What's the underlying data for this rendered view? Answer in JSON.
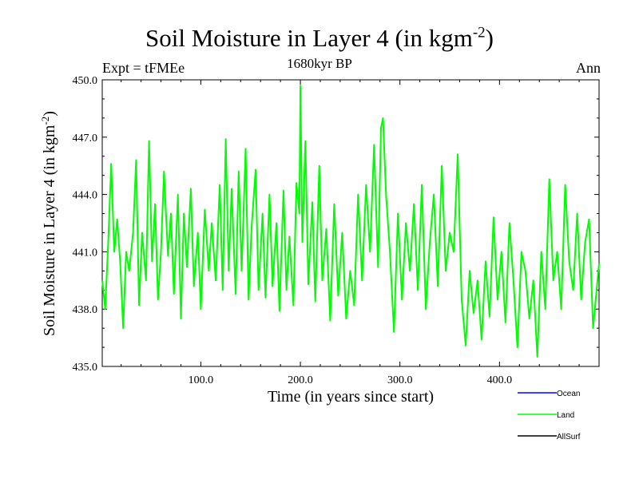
{
  "header": {
    "title_main": "Soil Moisture in Layer 4 (in kgm",
    "title_exp": "-2",
    "title_close": ")",
    "expt_label": "Expt = tFMEe",
    "subtitle": "1680kyr BP",
    "season": "Ann"
  },
  "colors": {
    "ocean": "#0000ff",
    "land": "#00ff00",
    "allsurf": "#000000"
  },
  "chart_data": {
    "type": "line",
    "title": "Soil Moisture in Layer 4 (in kgm-2)",
    "xlabel": "Time (in years since start)",
    "ylabel_main": "Soil Moisture in Layer 4 (in kgm",
    "ylabel_exp": "-2",
    "ylabel_close": ")",
    "xlim": [
      1,
      500
    ],
    "ylim": [
      435.0,
      450.0
    ],
    "xticks": [
      100,
      200,
      300,
      400
    ],
    "xtick_labels": [
      "100.0",
      "200.0",
      "300.0",
      "400.0"
    ],
    "yticks": [
      435,
      438,
      441,
      444,
      447,
      450
    ],
    "ytick_labels": [
      "435.0",
      "438.0",
      "441.0",
      "444.0",
      "447.0",
      "450.0"
    ],
    "legend": [
      {
        "name": "Ocean",
        "color": "#0000ff"
      },
      {
        "name": "Land",
        "color": "#00ff00"
      },
      {
        "name": "AllSurf",
        "color": "#000000"
      }
    ],
    "series": [
      {
        "name": "Land",
        "color": "#00ff00",
        "x": [
          1,
          4,
          7,
          10,
          13,
          16,
          19,
          22,
          25,
          28,
          32,
          35,
          38,
          41,
          45,
          48,
          51,
          54,
          57,
          60,
          63,
          67,
          70,
          73,
          77,
          80,
          83,
          86,
          90,
          93,
          97,
          100,
          104,
          108,
          111,
          115,
          119,
          122,
          125,
          128,
          131,
          135,
          138,
          141,
          145,
          148,
          151,
          155,
          158,
          162,
          165,
          169,
          172,
          176,
          179,
          183,
          186,
          189,
          193,
          196,
          199,
          200,
          202,
          205,
          208,
          212,
          215,
          219,
          222,
          226,
          230,
          234,
          238,
          242,
          246,
          250,
          254,
          258,
          262,
          266,
          270,
          274,
          278,
          281,
          283,
          286,
          290,
          294,
          298,
          302,
          306,
          310,
          314,
          318,
          322,
          326,
          330,
          334,
          338,
          342,
          346,
          350,
          354,
          358,
          362,
          366,
          370,
          374,
          378,
          382,
          386,
          390,
          394,
          398,
          402,
          406,
          410,
          414,
          418,
          422,
          426,
          430,
          434,
          438,
          442,
          446,
          450,
          454,
          458,
          462,
          466,
          470,
          474,
          478,
          482,
          486,
          490,
          494,
          500
        ],
        "values": [
          439.5,
          438.0,
          441.5,
          445.6,
          441.0,
          442.7,
          440.5,
          437.0,
          441.0,
          440.0,
          442.0,
          445.8,
          438.2,
          442.0,
          439.5,
          446.8,
          440.5,
          443.5,
          438.5,
          441.0,
          445.2,
          440.8,
          443.0,
          438.8,
          444.0,
          437.5,
          443.0,
          440.2,
          444.3,
          439.2,
          442.0,
          438.0,
          443.2,
          440.0,
          442.5,
          439.5,
          444.5,
          439.0,
          446.9,
          440.0,
          444.3,
          438.8,
          445.2,
          440.0,
          446.4,
          438.5,
          442.3,
          445.3,
          439.0,
          443.0,
          438.6,
          444.0,
          439.2,
          442.5,
          437.9,
          444.2,
          439.0,
          441.8,
          438.2,
          444.6,
          443.0,
          449.7,
          441.5,
          446.8,
          439.3,
          443.6,
          438.4,
          445.5,
          439.5,
          442.2,
          437.4,
          443.5,
          438.7,
          442.0,
          437.5,
          440.0,
          438.2,
          444.0,
          439.5,
          444.5,
          441.0,
          446.6,
          440.2,
          447.5,
          448.0,
          444.0,
          441.0,
          436.8,
          443.0,
          438.5,
          442.5,
          440.0,
          443.5,
          439.0,
          444.5,
          438.0,
          441.5,
          444.0,
          439.2,
          445.5,
          440.0,
          442.0,
          441.0,
          446.1,
          438.5,
          436.1,
          440.0,
          437.8,
          439.5,
          436.4,
          440.5,
          437.6,
          442.8,
          438.5,
          441.0,
          437.3,
          442.5,
          439.5,
          436.0,
          441.0,
          440.0,
          437.5,
          439.5,
          435.5,
          441.0,
          438.0,
          444.8,
          439.5,
          441.0,
          438.0,
          444.5,
          440.5,
          439.0,
          443.0,
          438.5,
          441.5,
          442.7,
          437.0,
          440.4
        ]
      }
    ]
  }
}
